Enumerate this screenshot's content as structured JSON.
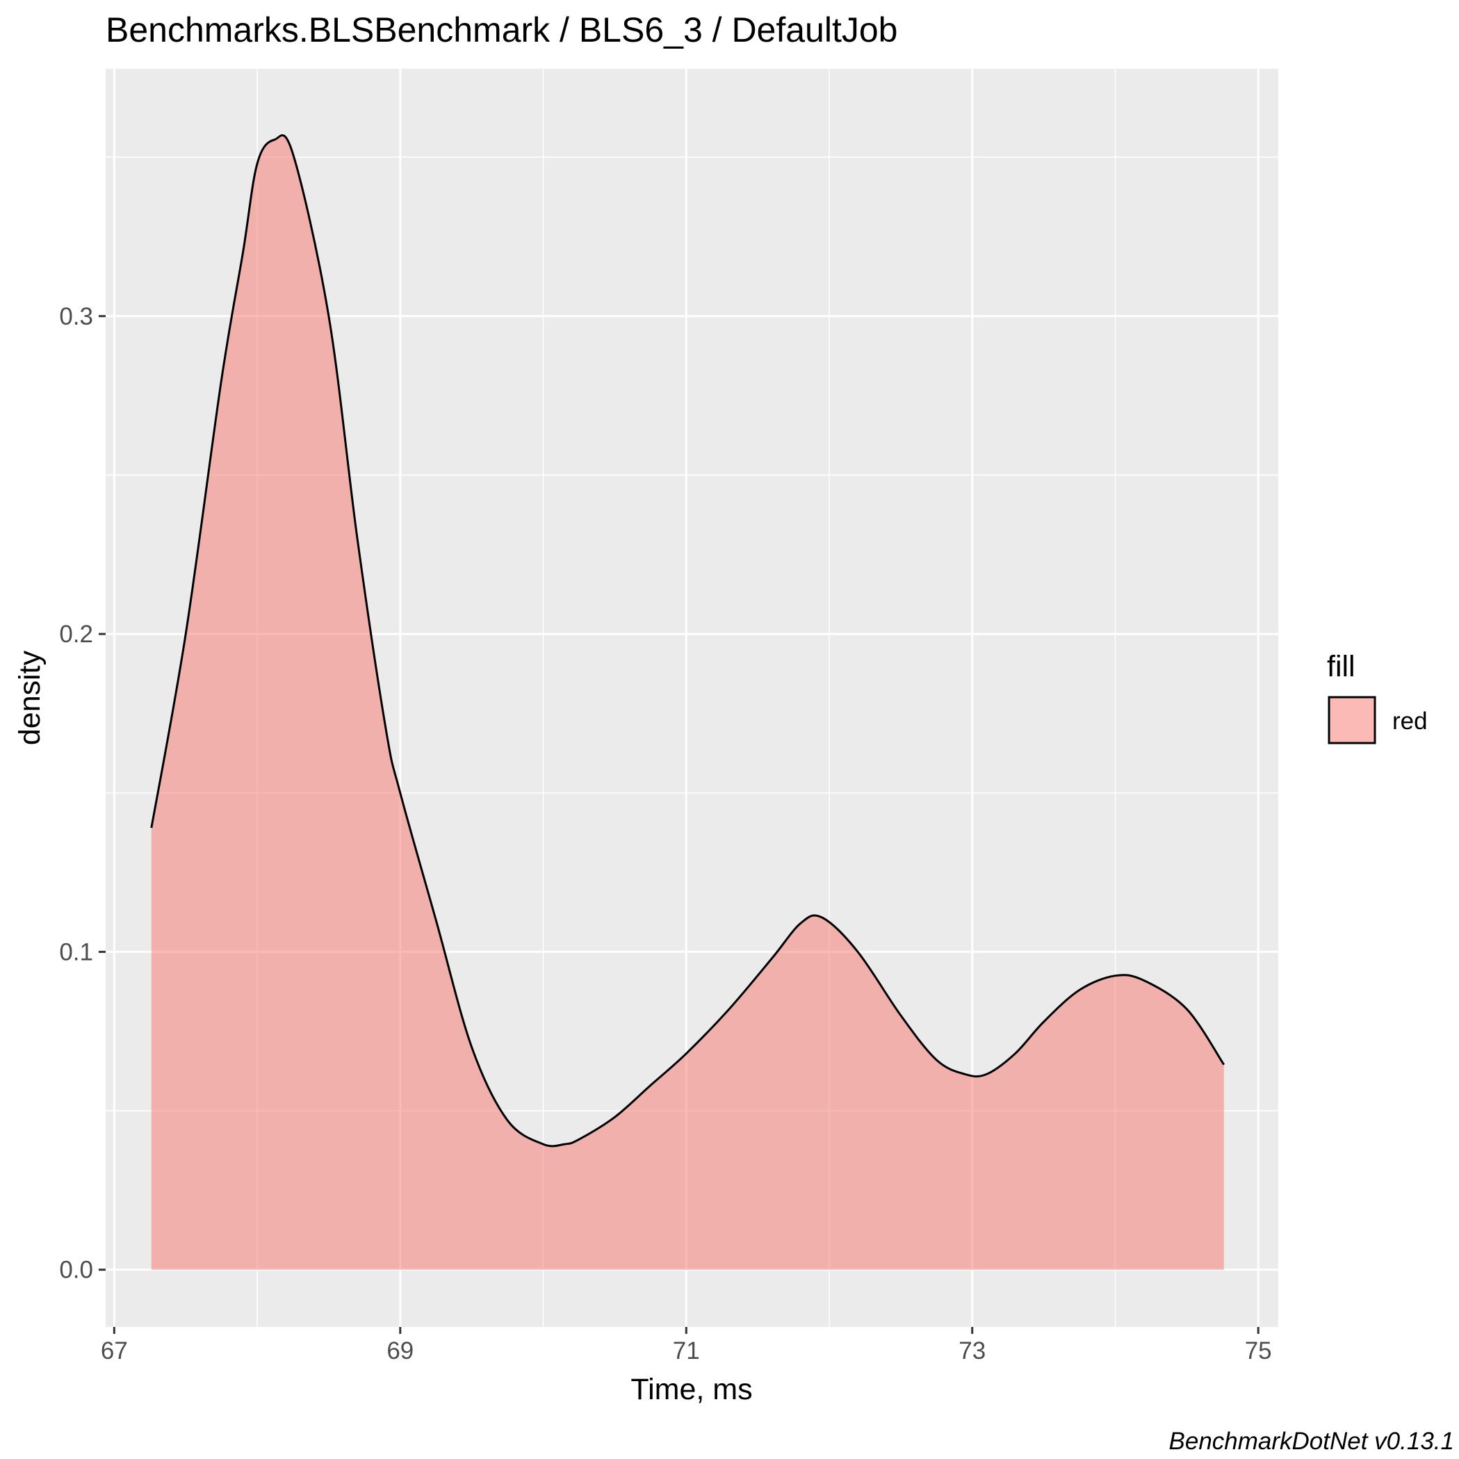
{
  "chart_data": {
    "type": "area",
    "title": "Benchmarks.BLSBenchmark / BLS6_3 / DefaultJob",
    "xlabel": "Time, ms",
    "ylabel": "density",
    "caption": "BenchmarkDotNet v0.13.1",
    "xlim": [
      66.94,
      75.14
    ],
    "ylim": [
      -0.018,
      0.3778
    ],
    "x_ticks": [
      67,
      69,
      71,
      73,
      75
    ],
    "x_tick_labels": [
      "67",
      "69",
      "71",
      "73",
      "75"
    ],
    "y_ticks": [
      0.0,
      0.1,
      0.2,
      0.3
    ],
    "y_tick_labels": [
      "0.0",
      "0.1",
      "0.2",
      "0.3"
    ],
    "grid": true,
    "legend": {
      "title": "fill",
      "position": "right",
      "entries": [
        {
          "label": "red",
          "color": "#F8766D"
        }
      ]
    },
    "colors": {
      "panel": "#EBEBEB",
      "grid": "#FFFFFF",
      "fill": "#F8766D",
      "fill_opacity": 0.5,
      "line": "#000000"
    },
    "series": [
      {
        "name": "red",
        "x": [
          67.26,
          67.5,
          67.75,
          67.9,
          68.0,
          68.12,
          68.25,
          68.5,
          68.7,
          68.9,
          69.0,
          69.25,
          69.5,
          69.75,
          70.0,
          70.15,
          70.25,
          70.5,
          70.75,
          71.0,
          71.3,
          71.6,
          71.8,
          71.95,
          72.2,
          72.5,
          72.75,
          72.95,
          73.1,
          73.3,
          73.5,
          73.75,
          74.0,
          74.2,
          74.5,
          74.76
        ],
        "y": [
          0.139,
          0.2,
          0.28,
          0.32,
          0.348,
          0.3555,
          0.351,
          0.3,
          0.23,
          0.17,
          0.15,
          0.11,
          0.07,
          0.047,
          0.0395,
          0.0395,
          0.041,
          0.048,
          0.058,
          0.068,
          0.082,
          0.098,
          0.109,
          0.1108,
          0.1,
          0.08,
          0.066,
          0.0615,
          0.0615,
          0.068,
          0.078,
          0.088,
          0.0925,
          0.091,
          0.082,
          0.0645
        ]
      }
    ]
  }
}
